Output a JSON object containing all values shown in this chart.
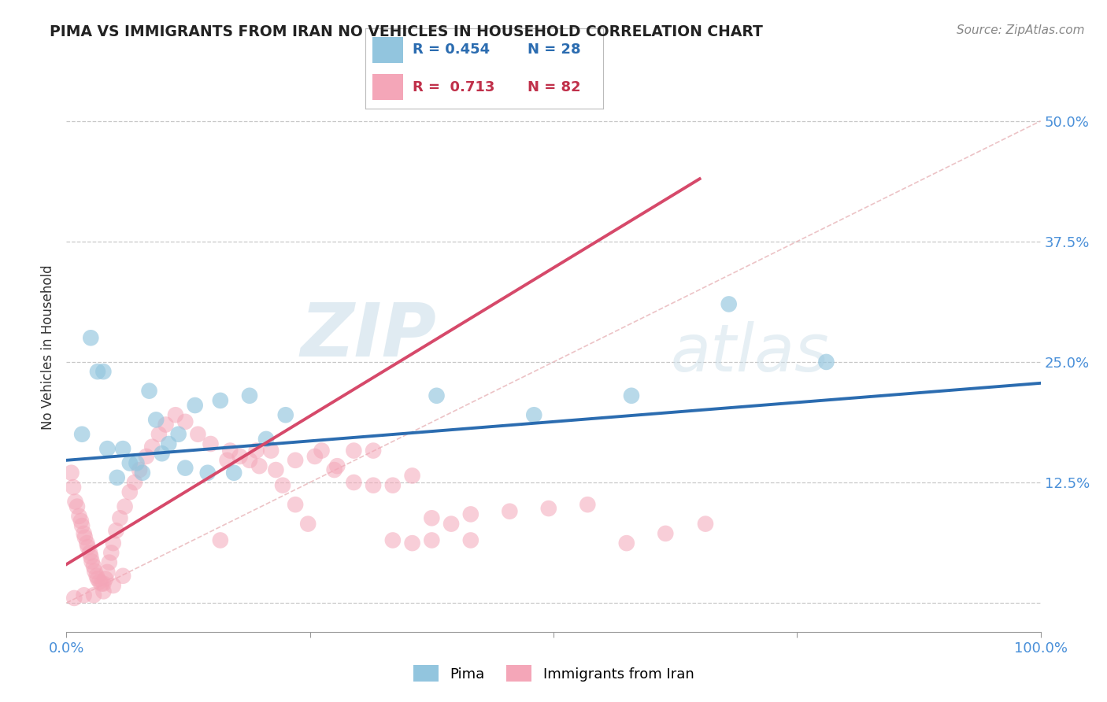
{
  "title": "PIMA VS IMMIGRANTS FROM IRAN NO VEHICLES IN HOUSEHOLD CORRELATION CHART",
  "source": "Source: ZipAtlas.com",
  "ylabel": "No Vehicles in Household",
  "xlim": [
    0.0,
    1.0
  ],
  "ylim": [
    -0.03,
    0.56
  ],
  "xticks": [
    0.0,
    0.25,
    0.5,
    0.75,
    1.0
  ],
  "xticklabels": [
    "0.0%",
    "",
    "",
    "",
    "100.0%"
  ],
  "yticks": [
    0.0,
    0.125,
    0.25,
    0.375,
    0.5
  ],
  "yticklabels": [
    "",
    "12.5%",
    "25.0%",
    "37.5%",
    "50.0%"
  ],
  "blue_color": "#92c5de",
  "pink_color": "#f4a6b8",
  "blue_line_color": "#2b6cb0",
  "pink_line_color": "#d6496a",
  "ref_line_color": "#e8b4b8",
  "grid_color": "#c8c8c8",
  "watermark_zip": "ZIP",
  "watermark_atlas": "atlas",
  "blue_line_x0": 0.0,
  "blue_line_y0": 0.148,
  "blue_line_x1": 1.0,
  "blue_line_y1": 0.228,
  "pink_line_x0": 0.0,
  "pink_line_y0": 0.04,
  "pink_line_x1": 0.65,
  "pink_line_y1": 0.44,
  "blue_points_x": [
    0.016,
    0.025,
    0.032,
    0.038,
    0.042,
    0.052,
    0.058,
    0.065,
    0.072,
    0.078,
    0.085,
    0.092,
    0.098,
    0.105,
    0.115,
    0.122,
    0.132,
    0.145,
    0.158,
    0.172,
    0.188,
    0.205,
    0.225,
    0.38,
    0.48,
    0.58,
    0.68,
    0.78
  ],
  "blue_points_y": [
    0.175,
    0.275,
    0.24,
    0.24,
    0.16,
    0.13,
    0.16,
    0.145,
    0.145,
    0.135,
    0.22,
    0.19,
    0.155,
    0.165,
    0.175,
    0.14,
    0.205,
    0.135,
    0.21,
    0.135,
    0.215,
    0.17,
    0.195,
    0.215,
    0.195,
    0.215,
    0.31,
    0.25
  ],
  "pink_points_x": [
    0.005,
    0.007,
    0.009,
    0.011,
    0.013,
    0.015,
    0.016,
    0.018,
    0.019,
    0.021,
    0.022,
    0.024,
    0.025,
    0.026,
    0.028,
    0.029,
    0.031,
    0.032,
    0.034,
    0.036,
    0.038,
    0.04,
    0.042,
    0.044,
    0.046,
    0.048,
    0.051,
    0.055,
    0.06,
    0.065,
    0.07,
    0.075,
    0.082,
    0.088,
    0.095,
    0.102,
    0.112,
    0.122,
    0.135,
    0.148,
    0.158,
    0.168,
    0.178,
    0.188,
    0.198,
    0.21,
    0.222,
    0.235,
    0.248,
    0.262,
    0.278,
    0.295,
    0.315,
    0.335,
    0.355,
    0.375,
    0.395,
    0.415,
    0.165,
    0.195,
    0.215,
    0.235,
    0.255,
    0.275,
    0.295,
    0.315,
    0.335,
    0.355,
    0.375,
    0.415,
    0.455,
    0.495,
    0.535,
    0.575,
    0.615,
    0.656,
    0.058,
    0.048,
    0.038,
    0.028,
    0.018,
    0.008
  ],
  "pink_points_y": [
    0.135,
    0.12,
    0.105,
    0.1,
    0.09,
    0.085,
    0.08,
    0.072,
    0.068,
    0.062,
    0.058,
    0.052,
    0.048,
    0.043,
    0.038,
    0.033,
    0.028,
    0.025,
    0.022,
    0.02,
    0.02,
    0.025,
    0.032,
    0.042,
    0.052,
    0.062,
    0.075,
    0.088,
    0.1,
    0.115,
    0.125,
    0.138,
    0.152,
    0.162,
    0.175,
    0.185,
    0.195,
    0.188,
    0.175,
    0.165,
    0.065,
    0.158,
    0.152,
    0.148,
    0.142,
    0.158,
    0.122,
    0.102,
    0.082,
    0.158,
    0.142,
    0.158,
    0.158,
    0.122,
    0.132,
    0.065,
    0.082,
    0.065,
    0.148,
    0.158,
    0.138,
    0.148,
    0.152,
    0.138,
    0.125,
    0.122,
    0.065,
    0.062,
    0.088,
    0.092,
    0.095,
    0.098,
    0.102,
    0.062,
    0.072,
    0.082,
    0.028,
    0.018,
    0.012,
    0.008,
    0.008,
    0.005
  ]
}
